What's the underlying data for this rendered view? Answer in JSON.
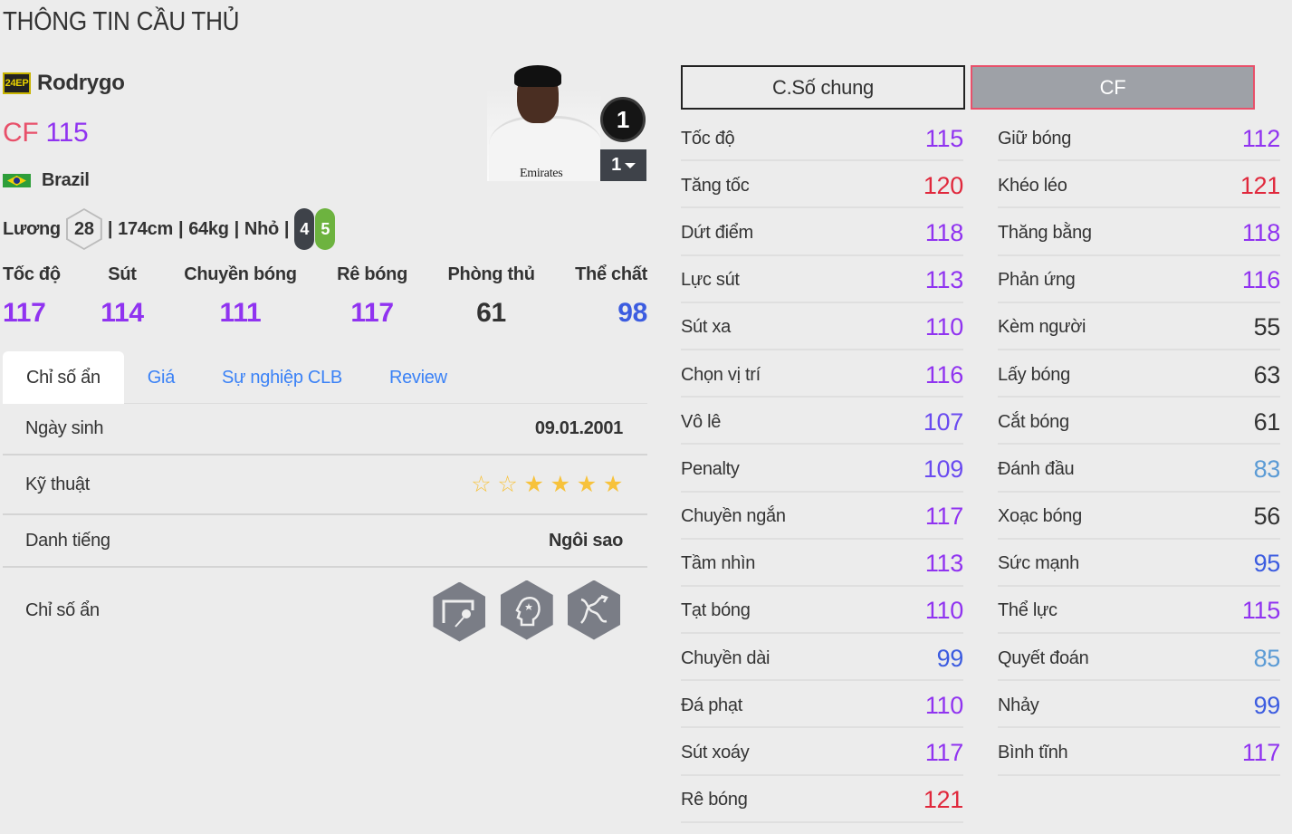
{
  "page_title": "THÔNG TIN CẦU THỦ",
  "player": {
    "season_badge": "24EP",
    "name": "Rodrygo",
    "position": "CF",
    "ovr": "115",
    "nation": "Brazil",
    "salary_label": "Lương",
    "salary": "28",
    "height": "174cm",
    "weight": "64kg",
    "body": "Nhỏ",
    "left_foot": "4",
    "right_foot": "5",
    "level": "1",
    "level_select": "1",
    "sponsor": "Emirates"
  },
  "colors": {
    "tier120": "#e0283c",
    "tier110": "#9033f0",
    "tier100": "#6a4bf0",
    "tier90": "#3c5ce0",
    "tier80": "#5b9bd5",
    "low": "#333333",
    "position": "#e8506a",
    "foot_left": "#3e4249",
    "foot_right": "#6db33f"
  },
  "main_stats": [
    {
      "label": "Tốc độ",
      "value": "117"
    },
    {
      "label": "Sút",
      "value": "114"
    },
    {
      "label": "Chuyền bóng",
      "value": "111"
    },
    {
      "label": "Rê bóng",
      "value": "117"
    },
    {
      "label": "Phòng thủ",
      "value": "61"
    },
    {
      "label": "Thể chất",
      "value": "98"
    }
  ],
  "tabs": [
    {
      "label": "Chỉ số ẩn"
    },
    {
      "label": "Giá"
    },
    {
      "label": "Sự nghiệp CLB"
    },
    {
      "label": "Review"
    }
  ],
  "details": {
    "birth_label": "Ngày sinh",
    "birth": "09.01.2001",
    "skill_label": "Kỹ thuật",
    "skill_stars": 4,
    "skill_max": 6,
    "rep_label": "Danh tiếng",
    "rep": "Ngôi sao",
    "hidden_label": "Chỉ số ẩn",
    "traits": [
      "goal-shot-icon",
      "star-head-icon",
      "dribble-path-icon"
    ]
  },
  "buttons": {
    "general": "C.Số chung",
    "position": "CF"
  },
  "stats_left": [
    [
      "Tốc độ",
      "115"
    ],
    [
      "Tăng tốc",
      "120"
    ],
    [
      "Dứt điểm",
      "118"
    ],
    [
      "Lực sút",
      "113"
    ],
    [
      "Sút xa",
      "110"
    ],
    [
      "Chọn vị trí",
      "116"
    ],
    [
      "Vô lê",
      "107"
    ],
    [
      "Penalty",
      "109"
    ],
    [
      "Chuyền ngắn",
      "117"
    ],
    [
      "Tầm nhìn",
      "113"
    ],
    [
      "Tạt bóng",
      "110"
    ],
    [
      "Chuyền dài",
      "99"
    ],
    [
      "Đá phạt",
      "110"
    ],
    [
      "Sút xoáy",
      "117"
    ],
    [
      "Rê bóng",
      "121"
    ]
  ],
  "stats_right": [
    [
      "Giữ bóng",
      "112"
    ],
    [
      "Khéo léo",
      "121"
    ],
    [
      "Thăng bằng",
      "118"
    ],
    [
      "Phản ứng",
      "116"
    ],
    [
      "Kèm người",
      "55"
    ],
    [
      "Lấy bóng",
      "63"
    ],
    [
      "Cắt bóng",
      "61"
    ],
    [
      "Đánh đầu",
      "83"
    ],
    [
      "Xoạc bóng",
      "56"
    ],
    [
      "Sức mạnh",
      "95"
    ],
    [
      "Thể lực",
      "115"
    ],
    [
      "Quyết đoán",
      "85"
    ],
    [
      "Nhảy",
      "99"
    ],
    [
      "Bình tĩnh",
      "117"
    ]
  ]
}
